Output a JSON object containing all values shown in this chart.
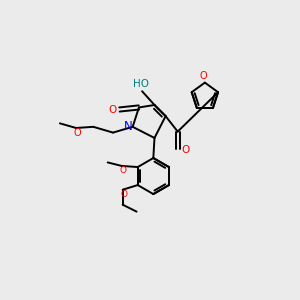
{
  "bg_color": "#ebebeb",
  "atom_colors": {
    "O": "#ff0000",
    "N": "#0000ff",
    "C": "#000000",
    "H": "#008080"
  },
  "bond_color": "#000000"
}
